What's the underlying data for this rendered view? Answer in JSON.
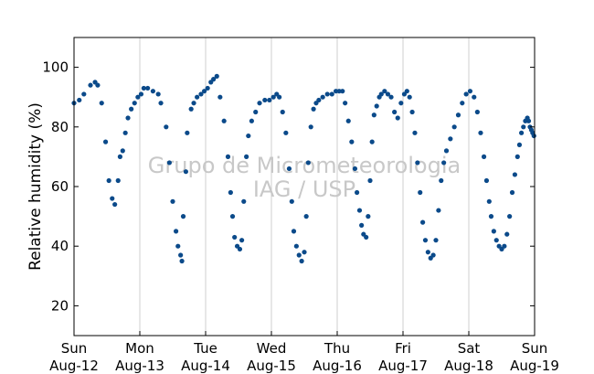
{
  "chart_data": {
    "type": "scatter",
    "title": "",
    "xlabel": "",
    "ylabel": "Relative humidity (%)",
    "watermark": [
      "Grupo de Micrometeorologia",
      "IAG / USP"
    ],
    "xlim": [
      0,
      7
    ],
    "ylim": [
      10,
      110
    ],
    "yticks": [
      20,
      40,
      60,
      80,
      100
    ],
    "xticks": [
      {
        "x": 0,
        "day": "Sun",
        "date": "Aug-12"
      },
      {
        "x": 1,
        "day": "Mon",
        "date": "Aug-13"
      },
      {
        "x": 2,
        "day": "Tue",
        "date": "Aug-14"
      },
      {
        "x": 3,
        "day": "Wed",
        "date": "Aug-15"
      },
      {
        "x": 4,
        "day": "Thu",
        "date": "Aug-16"
      },
      {
        "x": 5,
        "day": "Fri",
        "date": "Aug-17"
      },
      {
        "x": 6,
        "day": "Sat",
        "date": "Aug-18"
      },
      {
        "x": 7,
        "day": "Sun",
        "date": "Aug-19"
      }
    ],
    "grid": "vertical",
    "marker_color": "#0b4a8a",
    "series": [
      {
        "x": [
          0.0,
          0.08,
          0.15,
          0.25,
          0.32,
          0.36,
          0.42,
          0.48,
          0.53,
          0.58,
          0.62,
          0.67,
          0.7,
          0.74,
          0.78,
          0.82,
          0.87,
          0.92,
          0.97,
          1.02,
          1.06,
          1.12,
          1.2,
          1.28,
          1.32,
          1.4,
          1.45,
          1.5,
          1.55,
          1.58,
          1.62,
          1.64,
          1.66,
          1.7,
          1.72,
          1.78,
          1.82,
          1.87,
          1.93,
          1.98,
          2.03,
          2.08,
          2.12,
          2.17,
          2.22,
          2.28,
          2.34,
          2.38,
          2.41,
          2.44,
          2.48,
          2.52,
          2.55,
          2.58,
          2.62,
          2.65,
          2.7,
          2.76,
          2.82,
          2.9,
          2.97,
          3.03,
          3.08,
          3.12,
          3.17,
          3.22,
          3.27,
          3.31,
          3.34,
          3.38,
          3.42,
          3.46,
          3.5,
          3.53,
          3.56,
          3.6,
          3.64,
          3.68,
          3.72,
          3.78,
          3.85,
          3.92,
          3.98,
          4.03,
          4.08,
          4.12,
          4.17,
          4.22,
          4.27,
          4.3,
          4.34,
          4.37,
          4.4,
          4.44,
          4.47,
          4.5,
          4.53,
          4.56,
          4.6,
          4.64,
          4.67,
          4.72,
          4.77,
          4.82,
          4.87,
          4.92,
          4.97,
          5.02,
          5.06,
          5.1,
          5.14,
          5.18,
          5.22,
          5.26,
          5.3,
          5.34,
          5.38,
          5.42,
          5.46,
          5.5,
          5.54,
          5.58,
          5.62,
          5.66,
          5.72,
          5.78,
          5.84,
          5.9,
          5.96,
          6.02,
          6.08,
          6.13,
          6.18,
          6.23,
          6.27,
          6.31,
          6.34,
          6.38,
          6.42,
          6.46,
          6.5,
          6.54,
          6.58,
          6.62,
          6.66,
          6.7,
          6.74,
          6.77,
          6.8,
          6.83,
          6.86,
          6.89,
          6.91,
          6.93,
          6.95,
          6.97,
          6.99
        ],
        "y": [
          88,
          89,
          91,
          94,
          95,
          94,
          88,
          75,
          62,
          56,
          54,
          62,
          70,
          72,
          78,
          83,
          86,
          88,
          90,
          91,
          93,
          93,
          92,
          91,
          88,
          80,
          68,
          55,
          45,
          40,
          37,
          35,
          50,
          65,
          78,
          86,
          88,
          90,
          91,
          92,
          93,
          95,
          96,
          97,
          90,
          82,
          70,
          58,
          50,
          43,
          40,
          39,
          42,
          55,
          70,
          77,
          82,
          85,
          88,
          89,
          89,
          90,
          91,
          90,
          85,
          78,
          66,
          55,
          45,
          40,
          37,
          35,
          38,
          50,
          68,
          80,
          86,
          88,
          89,
          90,
          91,
          91,
          92,
          92,
          92,
          88,
          82,
          75,
          66,
          58,
          52,
          47,
          44,
          43,
          50,
          62,
          75,
          84,
          87,
          90,
          91,
          92,
          91,
          90,
          85,
          83,
          88,
          91,
          92,
          90,
          85,
          78,
          68,
          58,
          48,
          42,
          38,
          36,
          37,
          42,
          52,
          62,
          68,
          72,
          76,
          80,
          84,
          88,
          91,
          92,
          90,
          85,
          78,
          70,
          62,
          55,
          50,
          45,
          42,
          40,
          39,
          40,
          44,
          50,
          58,
          64,
          70,
          74,
          78,
          80,
          82,
          83,
          82,
          80,
          79,
          78,
          77
        ]
      }
    ]
  }
}
